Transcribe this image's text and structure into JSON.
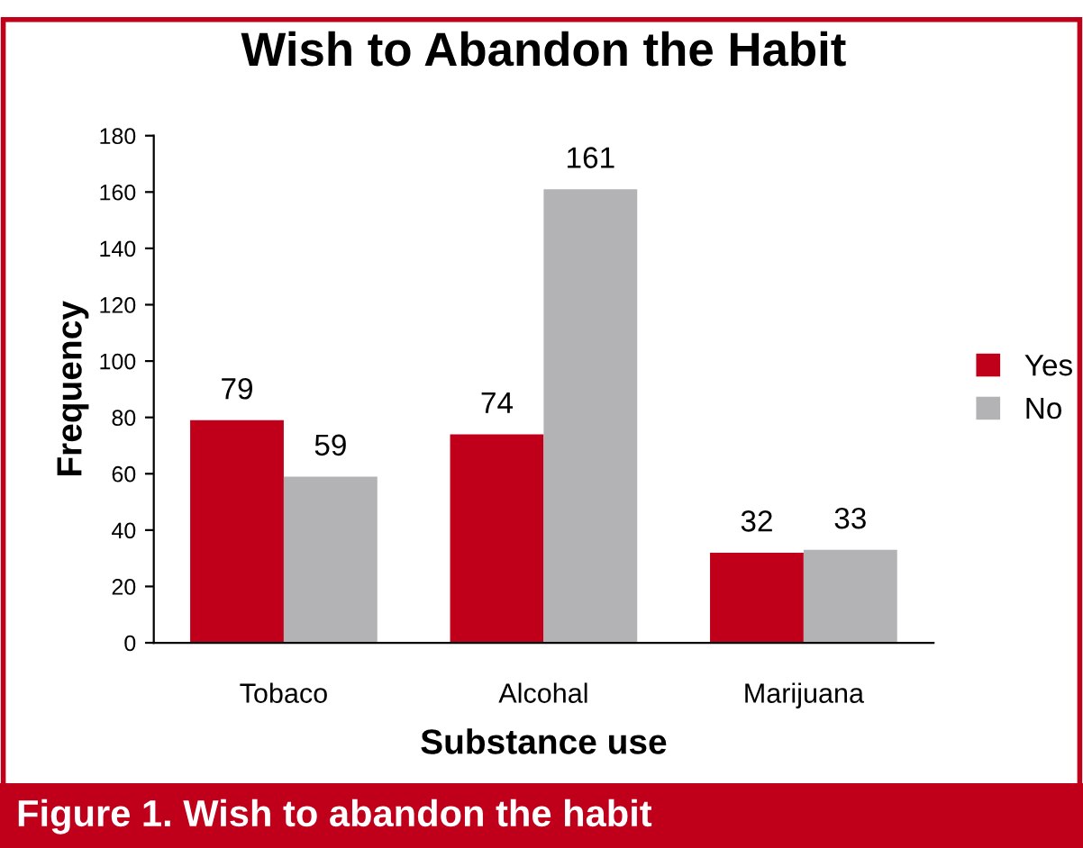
{
  "chart_data": {
    "type": "bar",
    "title": "Wish to Abandon the Habit",
    "xlabel": "Substance use",
    "ylabel": "Frequency",
    "categories": [
      "Tobaco",
      "Alcohal",
      "Marijuana"
    ],
    "series": [
      {
        "name": "Yes",
        "color": "#c0001a",
        "values": [
          79,
          74,
          32
        ]
      },
      {
        "name": "No",
        "color": "#b3b3b5",
        "values": [
          59,
          161,
          33
        ]
      }
    ],
    "ylim": [
      0,
      180
    ],
    "yticks": [
      0,
      20,
      40,
      60,
      80,
      100,
      120,
      140,
      160,
      180
    ],
    "grid": false,
    "legend": "right",
    "data_labels": true,
    "annotations": [
      "Figure 1. Wish to abandon the habit"
    ]
  }
}
